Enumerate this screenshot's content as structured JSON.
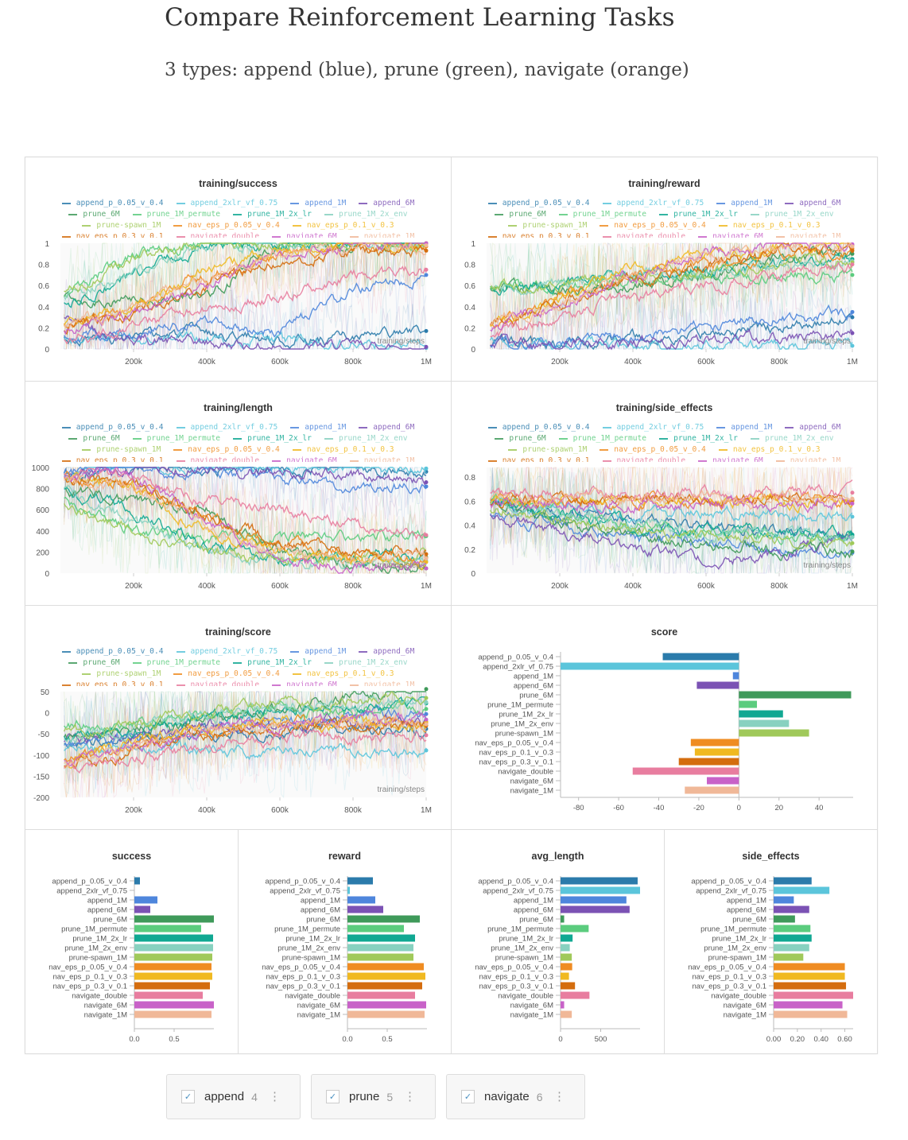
{
  "page": {
    "title": "Compare Reinforcement Learning Tasks",
    "subtitle": "3 types: append (blue), prune (green), navigate (orange)"
  },
  "runs": [
    {
      "name": "append_p_0.05_v_0.4",
      "color": "#2b7bab"
    },
    {
      "name": "append_2xlr_vf_0.75",
      "color": "#5bc5db"
    },
    {
      "name": "append_1M",
      "color": "#4e86dc"
    },
    {
      "name": "append_6M",
      "color": "#7b52b4"
    },
    {
      "name": "prune_6M",
      "color": "#3f9a5a"
    },
    {
      "name": "prune_1M_permute",
      "color": "#5bcc7e"
    },
    {
      "name": "prune_1M_2x_lr",
      "color": "#10a892"
    },
    {
      "name": "prune_1M_2x_env",
      "color": "#88d1c0"
    },
    {
      "name": "prune-spawn_1M",
      "color": "#a0c95a"
    },
    {
      "name": "nav_eps_p_0.05_v_0.4",
      "color": "#ef8c22"
    },
    {
      "name": "nav_eps_p_0.1_v_0.3",
      "color": "#f0b921"
    },
    {
      "name": "nav_eps_p_0.3_v_0.1",
      "color": "#d46d0e"
    },
    {
      "name": "navigate_double",
      "color": "#e87d9f"
    },
    {
      "name": "navigate_6M",
      "color": "#c862c8"
    },
    {
      "name": "navigate_1M",
      "color": "#f0b898"
    }
  ],
  "chart_data": [
    {
      "type": "line",
      "title": "training/success",
      "xlabel": "training/steps",
      "x": [
        0,
        200000,
        400000,
        600000,
        800000,
        1000000
      ],
      "x_ticks": [
        "200k",
        "400k",
        "600k",
        "800k",
        "1M"
      ],
      "y_ticks": [
        "0",
        "0.2",
        "0.4",
        "0.6",
        "0.8",
        "1"
      ],
      "ylim": [
        0,
        1
      ],
      "legend": "top",
      "series": [
        [
          0.1,
          0.1,
          0.15,
          0.1,
          0.1,
          0.17
        ],
        [
          0.1,
          0.1,
          0.1,
          0.05,
          0.05,
          0.01
        ],
        [
          0.15,
          0.15,
          0.25,
          0.15,
          0.55,
          0.7
        ],
        [
          0.3,
          0.1,
          0.05,
          0.02,
          0.02,
          0.02
        ],
        [
          0.5,
          0.45,
          0.5,
          1,
          1,
          1
        ],
        [
          0.5,
          0.9,
          1,
          1,
          1,
          1
        ],
        [
          0.4,
          0.7,
          1,
          1,
          1,
          1
        ],
        [
          0.5,
          0.7,
          1,
          1,
          1,
          1
        ],
        [
          0.5,
          0.85,
          1,
          1,
          1,
          1
        ],
        [
          0.2,
          0.4,
          0.7,
          0.9,
          0.95,
          0.97
        ],
        [
          0.2,
          0.4,
          0.75,
          0.95,
          1,
          1
        ],
        [
          0.2,
          0.35,
          0.6,
          0.85,
          0.9,
          0.93
        ],
        [
          0.1,
          0.2,
          0.4,
          0.5,
          0.7,
          0.75
        ],
        [
          0.2,
          0.3,
          0.6,
          0.9,
          1,
          1
        ],
        [
          0.2,
          0.4,
          0.7,
          0.9,
          0.97,
          0.98
        ]
      ]
    },
    {
      "type": "line",
      "title": "training/reward",
      "xlabel": "training/steps",
      "x": [
        0,
        200000,
        400000,
        600000,
        800000,
        1000000
      ],
      "x_ticks": [
        "200k",
        "400k",
        "600k",
        "800k",
        "1M"
      ],
      "y_ticks": [
        "0",
        "0.2",
        "0.4",
        "0.6",
        "0.8",
        "1"
      ],
      "ylim": [
        0,
        1
      ],
      "legend": "top",
      "series": [
        [
          0.05,
          0.05,
          0.1,
          0.15,
          0.2,
          0.3
        ],
        [
          0.05,
          0.03,
          0.03,
          0.03,
          0.03,
          0.03
        ],
        [
          0.05,
          0.05,
          0.1,
          0.2,
          0.3,
          0.35
        ],
        [
          0.05,
          0.05,
          0.05,
          0.08,
          0.12,
          0.15
        ],
        [
          0.6,
          0.55,
          0.6,
          0.7,
          0.85,
          0.9
        ],
        [
          0.6,
          0.6,
          0.65,
          0.7,
          0.7,
          0.7
        ],
        [
          0.6,
          0.6,
          0.7,
          0.75,
          0.8,
          0.85
        ],
        [
          0.6,
          0.6,
          0.7,
          0.75,
          0.8,
          0.83
        ],
        [
          0.6,
          0.6,
          0.7,
          0.75,
          0.8,
          0.82
        ],
        [
          0.2,
          0.5,
          0.7,
          0.8,
          0.9,
          0.95
        ],
        [
          0.2,
          0.5,
          0.75,
          0.85,
          0.95,
          0.98
        ],
        [
          0.2,
          0.45,
          0.65,
          0.8,
          0.9,
          0.93
        ],
        [
          0.1,
          0.3,
          0.5,
          0.6,
          0.7,
          0.8
        ],
        [
          0.2,
          0.4,
          0.7,
          0.9,
          0.97,
          0.99
        ],
        [
          0.2,
          0.45,
          0.7,
          0.85,
          0.95,
          0.97
        ]
      ]
    },
    {
      "type": "line",
      "title": "training/length",
      "xlabel": "training/steps",
      "x": [
        0,
        200000,
        400000,
        600000,
        800000,
        1000000
      ],
      "x_ticks": [
        "200k",
        "400k",
        "600k",
        "800k",
        "1M"
      ],
      "y_ticks": [
        "0",
        "200",
        "400",
        "600",
        "800",
        "1000"
      ],
      "ylim": [
        0,
        1000
      ],
      "legend": "top",
      "series": [
        [
          950,
          1000,
          990,
          990,
          1000,
          960
        ],
        [
          950,
          1000,
          1000,
          1000,
          1000,
          990
        ],
        [
          950,
          990,
          950,
          900,
          800,
          820
        ],
        [
          950,
          990,
          990,
          960,
          920,
          860
        ],
        [
          800,
          700,
          600,
          200,
          100,
          45
        ],
        [
          700,
          400,
          300,
          350,
          350,
          350
        ],
        [
          800,
          600,
          250,
          150,
          150,
          150
        ],
        [
          800,
          500,
          200,
          120,
          120,
          115
        ],
        [
          700,
          400,
          200,
          140,
          140,
          140
        ],
        [
          900,
          850,
          500,
          250,
          150,
          145
        ],
        [
          900,
          800,
          400,
          200,
          110,
          105
        ],
        [
          900,
          850,
          550,
          300,
          200,
          180
        ],
        [
          950,
          900,
          700,
          600,
          450,
          360
        ],
        [
          950,
          900,
          500,
          150,
          60,
          45
        ],
        [
          900,
          800,
          450,
          220,
          150,
          140
        ]
      ]
    },
    {
      "type": "line",
      "title": "training/side_effects",
      "xlabel": "training/steps",
      "x": [
        0,
        200000,
        400000,
        600000,
        800000,
        1000000
      ],
      "x_ticks": [
        "200k",
        "400k",
        "600k",
        "800k",
        "1M"
      ],
      "y_ticks": [
        "0",
        "0.2",
        "0.4",
        "0.6",
        "0.8"
      ],
      "ylim": [
        0,
        0.88
      ],
      "legend": "top",
      "series": [
        [
          0.6,
          0.5,
          0.45,
          0.4,
          0.35,
          0.32
        ],
        [
          0.6,
          0.55,
          0.5,
          0.5,
          0.48,
          0.47
        ],
        [
          0.5,
          0.4,
          0.3,
          0.25,
          0.2,
          0.17
        ],
        [
          0.5,
          0.35,
          0.2,
          0.1,
          0.15,
          0.3
        ],
        [
          0.6,
          0.45,
          0.3,
          0.25,
          0.2,
          0.18
        ],
        [
          0.6,
          0.5,
          0.4,
          0.35,
          0.32,
          0.31
        ],
        [
          0.6,
          0.5,
          0.4,
          0.35,
          0.33,
          0.32
        ],
        [
          0.6,
          0.5,
          0.4,
          0.35,
          0.32,
          0.3
        ],
        [
          0.55,
          0.45,
          0.35,
          0.3,
          0.27,
          0.25
        ],
        [
          0.6,
          0.6,
          0.6,
          0.6,
          0.6,
          0.6
        ],
        [
          0.6,
          0.6,
          0.62,
          0.6,
          0.6,
          0.6
        ],
        [
          0.6,
          0.62,
          0.62,
          0.61,
          0.61,
          0.61
        ],
        [
          0.65,
          0.65,
          0.65,
          0.67,
          0.67,
          0.67
        ],
        [
          0.6,
          0.58,
          0.58,
          0.58,
          0.58,
          0.58
        ],
        [
          0.6,
          0.62,
          0.62,
          0.62,
          0.62,
          0.62
        ]
      ]
    },
    {
      "type": "line",
      "title": "training/score",
      "xlabel": "training/steps",
      "x": [
        0,
        200000,
        400000,
        600000,
        800000,
        1000000
      ],
      "x_ticks": [
        "200k",
        "400k",
        "600k",
        "800k",
        "1M"
      ],
      "y_ticks": [
        "-200",
        "-150",
        "-100",
        "-50",
        "0",
        "50"
      ],
      "ylim": [
        -200,
        50
      ],
      "legend": "top",
      "series": [
        [
          -80,
          -70,
          -55,
          -45,
          -40,
          -38
        ],
        [
          -90,
          -85,
          -90,
          -90,
          -90,
          -89
        ],
        [
          -80,
          -60,
          -40,
          -20,
          -10,
          -3
        ],
        [
          -70,
          -50,
          -35,
          -25,
          -22,
          -21
        ],
        [
          -60,
          -40,
          -20,
          10,
          40,
          56
        ],
        [
          -40,
          -20,
          0,
          5,
          8,
          9
        ],
        [
          -60,
          -40,
          -10,
          10,
          20,
          22
        ],
        [
          -60,
          -40,
          -10,
          15,
          22,
          25
        ],
        [
          -50,
          -30,
          0,
          20,
          30,
          35
        ],
        [
          -120,
          -80,
          -40,
          -25,
          -24,
          -24
        ],
        [
          -120,
          -70,
          -35,
          -25,
          -22,
          -22
        ],
        [
          -130,
          -90,
          -50,
          -35,
          -30,
          -30
        ],
        [
          -140,
          -110,
          -80,
          -60,
          -55,
          -53
        ],
        [
          -120,
          -80,
          -40,
          -20,
          -16,
          -16
        ],
        [
          -120,
          -80,
          -40,
          -30,
          -27,
          -27
        ]
      ]
    },
    {
      "type": "bar",
      "title": "score",
      "orientation": "horizontal",
      "xlim": [
        -89,
        57
      ],
      "x_ticks": [
        "-80",
        "-60",
        "-40",
        "-20",
        "0",
        "20",
        "40"
      ],
      "tick_values": [
        -80,
        -60,
        -40,
        -20,
        0,
        20,
        40
      ],
      "values": [
        -38,
        -89,
        -3,
        -21,
        56,
        9,
        22,
        25,
        35,
        -24,
        -22,
        -30,
        -53,
        -16,
        -27
      ]
    },
    {
      "type": "bar",
      "title": "success",
      "orientation": "horizontal",
      "xlim": [
        0,
        1
      ],
      "x_ticks": [
        "0.0",
        "0.5"
      ],
      "tick_values": [
        0,
        0.5
      ],
      "values": [
        0.07,
        0.0,
        0.29,
        0.2,
        1.0,
        0.84,
        0.99,
        0.99,
        0.98,
        0.97,
        0.98,
        0.95,
        0.86,
        1.0,
        0.97
      ]
    },
    {
      "type": "bar",
      "title": "reward",
      "orientation": "horizontal",
      "xlim": [
        0,
        1
      ],
      "x_ticks": [
        "0.0",
        "0.5"
      ],
      "tick_values": [
        0,
        0.5
      ],
      "values": [
        0.32,
        0.03,
        0.35,
        0.45,
        0.91,
        0.71,
        0.85,
        0.83,
        0.83,
        0.96,
        0.98,
        0.94,
        0.85,
        0.99,
        0.97
      ]
    },
    {
      "type": "bar",
      "title": "avg_length",
      "orientation": "horizontal",
      "xlim": [
        0,
        990
      ],
      "x_ticks": [
        "0",
        "500"
      ],
      "tick_values": [
        0,
        500
      ],
      "values": [
        960,
        990,
        820,
        860,
        45,
        350,
        150,
        115,
        140,
        145,
        105,
        180,
        360,
        45,
        140
      ]
    },
    {
      "type": "bar",
      "title": "side_effects",
      "orientation": "horizontal",
      "xlim": [
        0,
        0.67
      ],
      "x_ticks": [
        "0.00",
        "0.20",
        "0.40",
        "0.60"
      ],
      "tick_values": [
        0,
        0.2,
        0.4,
        0.6
      ],
      "values": [
        0.32,
        0.47,
        0.17,
        0.3,
        0.18,
        0.31,
        0.32,
        0.3,
        0.25,
        0.6,
        0.6,
        0.61,
        0.67,
        0.58,
        0.62
      ]
    }
  ],
  "groups": [
    {
      "label": "append",
      "count": "4",
      "checked": true,
      "menu_icon": "more-vertical-icon",
      "check_glyph": "✓",
      "menu_glyph": "⋮"
    },
    {
      "label": "prune",
      "count": "5",
      "checked": true,
      "menu_icon": "more-vertical-icon",
      "check_glyph": "✓",
      "menu_glyph": "⋮"
    },
    {
      "label": "navigate",
      "count": "6",
      "checked": true,
      "menu_icon": "more-vertical-icon",
      "check_glyph": "✓",
      "menu_glyph": "⋮"
    }
  ]
}
